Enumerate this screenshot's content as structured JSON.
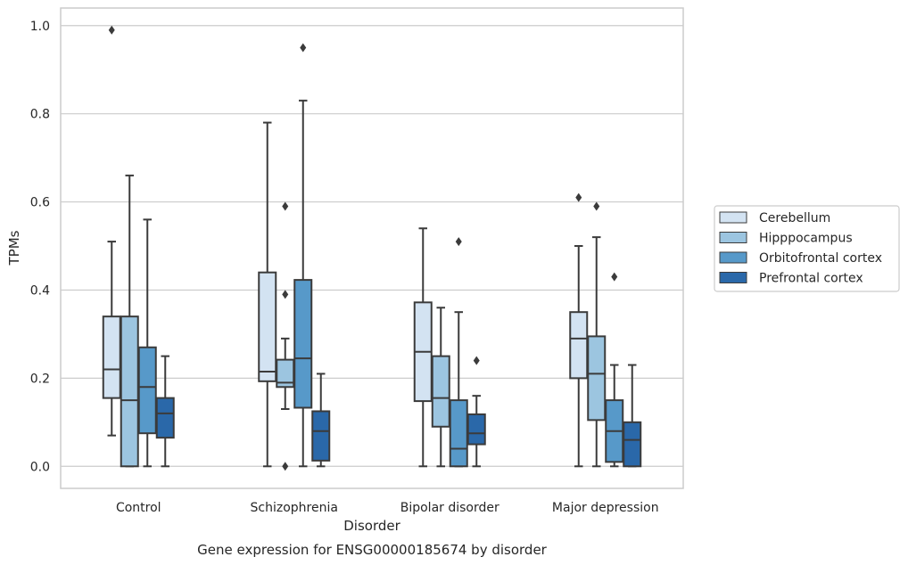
{
  "caption": "Gene expression for ENSG00000185674 by disorder",
  "chart_data": {
    "type": "box",
    "title": "",
    "xlabel": "Disorder",
    "ylabel": "TPMs",
    "ylim": [
      -0.05,
      1.04
    ],
    "yticks": [
      0.0,
      0.2,
      0.4,
      0.6,
      0.8,
      1.0
    ],
    "ytick_labels": [
      "0.0",
      "0.2",
      "0.4",
      "0.6",
      "0.8",
      "1.0"
    ],
    "grid": "horizontal",
    "legend_position": "right",
    "categories": [
      "Control",
      "Schizophrenia",
      "Bipolar disorder",
      "Major depression"
    ],
    "series": [
      {
        "name": "Cerebellum",
        "color": "#d3e3f2",
        "boxes": [
          {
            "whislo": 0.07,
            "q1": 0.155,
            "med": 0.22,
            "q3": 0.34,
            "whishi": 0.51,
            "fliers": [
              0.99
            ]
          },
          {
            "whislo": 0.0,
            "q1": 0.193,
            "med": 0.215,
            "q3": 0.44,
            "whishi": 0.78,
            "fliers": []
          },
          {
            "whislo": 0.0,
            "q1": 0.148,
            "med": 0.26,
            "q3": 0.372,
            "whishi": 0.54,
            "fliers": []
          },
          {
            "whislo": 0.0,
            "q1": 0.2,
            "med": 0.29,
            "q3": 0.35,
            "whishi": 0.5,
            "fliers": [
              0.61
            ]
          }
        ]
      },
      {
        "name": "Hipppocampus",
        "color": "#9cc5e0",
        "boxes": [
          {
            "whislo": 0.0,
            "q1": 0.0,
            "med": 0.15,
            "q3": 0.34,
            "whishi": 0.66,
            "fliers": []
          },
          {
            "whislo": 0.13,
            "q1": 0.18,
            "med": 0.19,
            "q3": 0.242,
            "whishi": 0.29,
            "fliers": [
              0.59,
              0.39,
              0.0
            ]
          },
          {
            "whislo": 0.0,
            "q1": 0.09,
            "med": 0.155,
            "q3": 0.25,
            "whishi": 0.36,
            "fliers": []
          },
          {
            "whislo": 0.0,
            "q1": 0.105,
            "med": 0.21,
            "q3": 0.295,
            "whishi": 0.52,
            "fliers": [
              0.59
            ]
          }
        ]
      },
      {
        "name": "Orbitofrontal cortex",
        "color": "#5799c9",
        "boxes": [
          {
            "whislo": 0.0,
            "q1": 0.075,
            "med": 0.18,
            "q3": 0.27,
            "whishi": 0.56,
            "fliers": []
          },
          {
            "whislo": 0.0,
            "q1": 0.133,
            "med": 0.245,
            "q3": 0.423,
            "whishi": 0.83,
            "fliers": [
              0.95
            ]
          },
          {
            "whislo": 0.0,
            "q1": 0.0,
            "med": 0.04,
            "q3": 0.15,
            "whishi": 0.35,
            "fliers": [
              0.51
            ]
          },
          {
            "whislo": 0.0,
            "q1": 0.01,
            "med": 0.08,
            "q3": 0.15,
            "whishi": 0.23,
            "fliers": [
              0.43
            ]
          }
        ]
      },
      {
        "name": "Prefrontal cortex",
        "color": "#2a68a9",
        "boxes": [
          {
            "whislo": 0.0,
            "q1": 0.065,
            "med": 0.12,
            "q3": 0.155,
            "whishi": 0.25,
            "fliers": []
          },
          {
            "whislo": 0.0,
            "q1": 0.013,
            "med": 0.08,
            "q3": 0.125,
            "whishi": 0.21,
            "fliers": []
          },
          {
            "whislo": 0.0,
            "q1": 0.05,
            "med": 0.075,
            "q3": 0.118,
            "whishi": 0.16,
            "fliers": [
              0.24
            ]
          },
          {
            "whislo": 0.0,
            "q1": 0.0,
            "med": 0.06,
            "q3": 0.1,
            "whishi": 0.23,
            "fliers": []
          }
        ]
      }
    ]
  }
}
